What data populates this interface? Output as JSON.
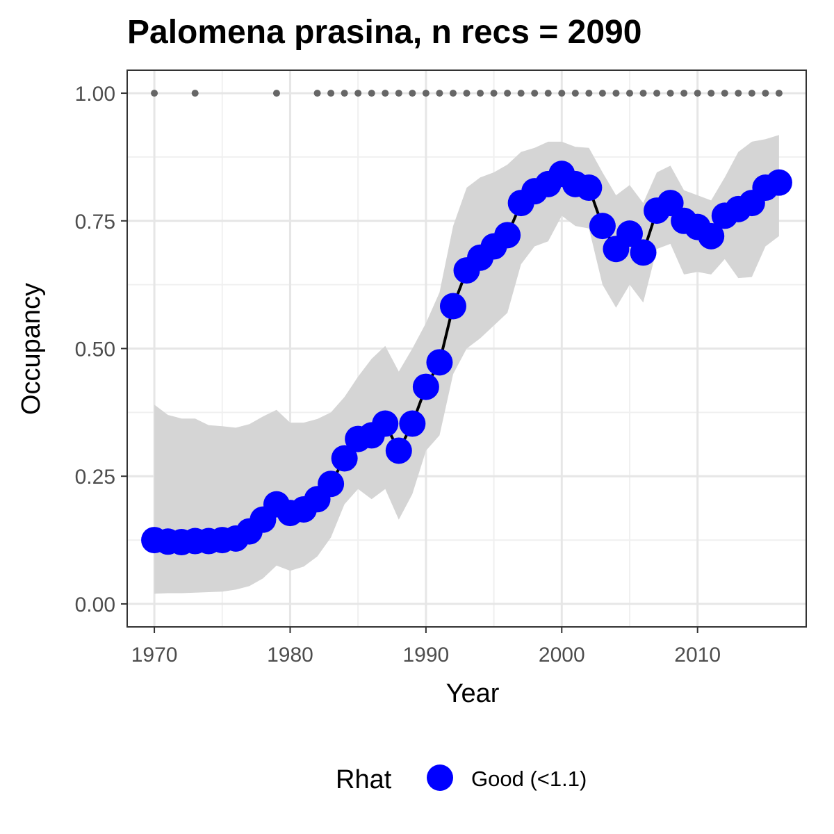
{
  "chart_data": {
    "type": "line",
    "title": "Palomena prasina, n recs = 2090",
    "xlabel": "Year",
    "ylabel": "Occupancy",
    "xlim": [
      1968,
      2018
    ],
    "ylim": [
      -0.045,
      1.045
    ],
    "x_ticks": [
      1970,
      1980,
      1990,
      2000,
      2010
    ],
    "x_tick_labels": [
      "1970",
      "1980",
      "1990",
      "2000",
      "2010"
    ],
    "y_ticks": [
      0,
      0.25,
      0.5,
      0.75,
      1.0
    ],
    "y_tick_labels": [
      "0.00",
      "0.25",
      "0.50",
      "0.75",
      "1.00"
    ],
    "grid": true,
    "legend": {
      "placement": "bottom",
      "title": "Rhat",
      "entries": [
        {
          "label": "Good (<1.1)",
          "color": "#0000ff"
        }
      ]
    },
    "series": [
      {
        "name": "Good (<1.1)",
        "x": [
          1970,
          1971,
          1972,
          1973,
          1974,
          1975,
          1976,
          1977,
          1978,
          1979,
          1980,
          1981,
          1982,
          1983,
          1984,
          1985,
          1986,
          1987,
          1988,
          1989,
          1990,
          1991,
          1992,
          1993,
          1994,
          1995,
          1996,
          1997,
          1998,
          1999,
          2000,
          2001,
          2002,
          2003,
          2004,
          2005,
          2006,
          2007,
          2008,
          2009,
          2010,
          2011,
          2012,
          2013,
          2014,
          2015,
          2016
        ],
        "y": [
          0.125,
          0.122,
          0.121,
          0.123,
          0.123,
          0.125,
          0.128,
          0.142,
          0.165,
          0.195,
          0.178,
          0.185,
          0.205,
          0.235,
          0.285,
          0.323,
          0.33,
          0.353,
          0.3,
          0.353,
          0.425,
          0.473,
          0.583,
          0.653,
          0.678,
          0.7,
          0.722,
          0.785,
          0.808,
          0.822,
          0.842,
          0.822,
          0.815,
          0.74,
          0.695,
          0.725,
          0.688,
          0.77,
          0.785,
          0.75,
          0.738,
          0.72,
          0.76,
          0.773,
          0.785,
          0.815,
          0.825
        ],
        "lower": [
          0.02,
          0.021,
          0.021,
          0.022,
          0.023,
          0.024,
          0.028,
          0.035,
          0.05,
          0.075,
          0.065,
          0.073,
          0.093,
          0.13,
          0.195,
          0.225,
          0.205,
          0.225,
          0.165,
          0.215,
          0.3,
          0.33,
          0.45,
          0.5,
          0.52,
          0.545,
          0.57,
          0.665,
          0.7,
          0.71,
          0.76,
          0.74,
          0.735,
          0.625,
          0.58,
          0.625,
          0.59,
          0.695,
          0.705,
          0.645,
          0.65,
          0.645,
          0.675,
          0.638,
          0.64,
          0.7,
          0.72
        ],
        "upper": [
          0.39,
          0.37,
          0.363,
          0.363,
          0.35,
          0.348,
          0.345,
          0.352,
          0.367,
          0.38,
          0.355,
          0.355,
          0.362,
          0.375,
          0.405,
          0.445,
          0.48,
          0.505,
          0.455,
          0.5,
          0.55,
          0.61,
          0.74,
          0.815,
          0.835,
          0.845,
          0.86,
          0.885,
          0.893,
          0.905,
          0.905,
          0.895,
          0.893,
          0.845,
          0.8,
          0.82,
          0.785,
          0.845,
          0.858,
          0.81,
          0.8,
          0.79,
          0.835,
          0.885,
          0.905,
          0.91,
          0.918
        ],
        "point_color": "#0000ff",
        "line_color": "#000000",
        "ribbon_color": "#d5d5d5"
      }
    ],
    "data_indicator": {
      "y": 1.0,
      "color": "#666666",
      "x": [
        1970,
        1973,
        1979,
        1982,
        1983,
        1984,
        1985,
        1986,
        1987,
        1988,
        1989,
        1990,
        1991,
        1992,
        1993,
        1994,
        1995,
        1996,
        1997,
        1998,
        1999,
        2000,
        2001,
        2002,
        2003,
        2004,
        2005,
        2006,
        2007,
        2008,
        2009,
        2010,
        2011,
        2012,
        2013,
        2014,
        2015,
        2016
      ]
    }
  }
}
